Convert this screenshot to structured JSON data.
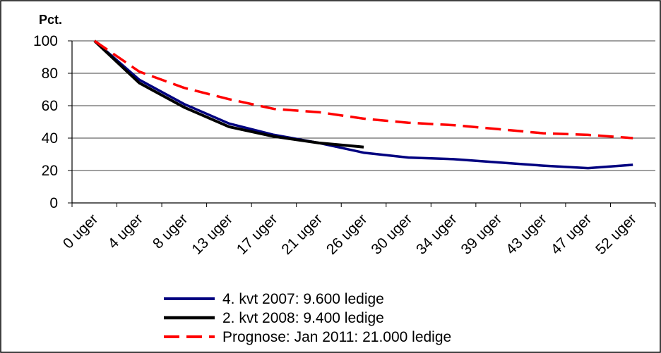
{
  "chart_data": {
    "type": "line",
    "title": "",
    "xlabel": "",
    "ylabel": "Pct.",
    "ylim": [
      0,
      100
    ],
    "yticks": [
      "0",
      "20",
      "40",
      "60",
      "80",
      "100"
    ],
    "categories": [
      "0 uger",
      "4 uger",
      "8 uger",
      "13 uger",
      "17 uger",
      "21 uger",
      "26 uger",
      "30 uger",
      "34 uger",
      "39 uger",
      "43 uger",
      "47 uger",
      "52 uger"
    ],
    "grid": true,
    "legend_position": "bottom",
    "series": [
      {
        "name": "4. kvt 2007: 9.600 ledige",
        "color": "#000080",
        "style": "solid",
        "values": [
          100,
          76,
          61,
          49,
          42,
          37,
          31,
          28,
          27,
          25,
          23,
          21.5,
          23.5
        ]
      },
      {
        "name": "2. kvt 2008: 9.400 ledige",
        "color": "#000000",
        "style": "solid",
        "values": [
          100,
          74,
          59,
          47,
          41,
          37,
          34.5,
          null,
          null,
          null,
          null,
          null,
          null
        ]
      },
      {
        "name": "Prognose: Jan 2011: 21.000 ledige",
        "color": "#ff0000",
        "style": "dashed",
        "values": [
          100,
          81,
          71,
          64,
          58,
          56,
          52,
          49.5,
          48,
          45.5,
          43,
          42,
          40
        ]
      }
    ]
  }
}
